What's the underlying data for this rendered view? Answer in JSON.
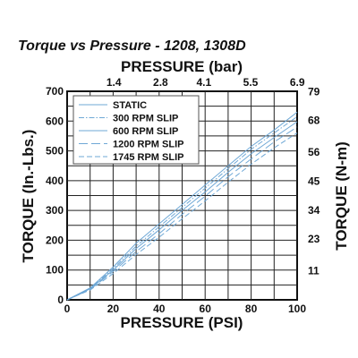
{
  "chart_data": {
    "type": "line",
    "title": "Torque vs Pressure - 1208, 1308D",
    "xlabel": "PRESSURE (PSI)",
    "x2label": "PRESSURE (bar)",
    "ylabel": "TORQUE (In.-Lbs.)",
    "y2label": "TORQUE (N-m)",
    "xlim": [
      0,
      100
    ],
    "ylim": [
      0,
      700
    ],
    "x_ticks": [
      "0",
      "20",
      "40",
      "60",
      "80",
      "100"
    ],
    "y_ticks": [
      "0",
      "100",
      "200",
      "300",
      "400",
      "500",
      "600",
      "700"
    ],
    "x2_ticks": [
      "1.4",
      "2.8",
      "4.1",
      "5.5",
      "6.9"
    ],
    "y2_ticks": [
      "11",
      "23",
      "34",
      "45",
      "56",
      "68",
      "79"
    ],
    "grid": true,
    "legend_position": "top-left",
    "series": [
      {
        "name": "STATIC",
        "dash": "solid",
        "x": [
          0,
          10,
          20,
          30,
          40,
          50,
          60,
          70,
          80,
          90,
          100
        ],
        "y": [
          0,
          40,
          110,
          190,
          255,
          320,
          385,
          450,
          515,
          570,
          630
        ]
      },
      {
        "name": "300 RPM SLIP",
        "dash": "dash-dot",
        "x": [
          0,
          10,
          20,
          30,
          40,
          50,
          60,
          70,
          80,
          90,
          100
        ],
        "y": [
          0,
          38,
          105,
          180,
          245,
          310,
          375,
          440,
          505,
          560,
          615
        ]
      },
      {
        "name": "600 RPM SLIP",
        "dash": "solid",
        "x": [
          0,
          10,
          20,
          30,
          40,
          50,
          60,
          70,
          80,
          90,
          100
        ],
        "y": [
          0,
          37,
          100,
          172,
          235,
          300,
          362,
          428,
          490,
          545,
          598
        ]
      },
      {
        "name": "1200 RPM SLIP",
        "dash": "long-dash",
        "x": [
          0,
          10,
          20,
          30,
          40,
          50,
          60,
          70,
          80,
          90,
          100
        ],
        "y": [
          0,
          35,
          95,
          162,
          222,
          287,
          348,
          413,
          473,
          530,
          580
        ]
      },
      {
        "name": "1745 RPM SLIP",
        "dash": "dash",
        "x": [
          0,
          10,
          20,
          30,
          40,
          50,
          60,
          70,
          80,
          90,
          100
        ],
        "y": [
          0,
          33,
          88,
          152,
          210,
          272,
          332,
          395,
          455,
          510,
          560
        ]
      }
    ],
    "colors": {
      "line": "#6fa8d6",
      "grid": "#222222",
      "frame": "#111111",
      "text": "#111111"
    }
  }
}
